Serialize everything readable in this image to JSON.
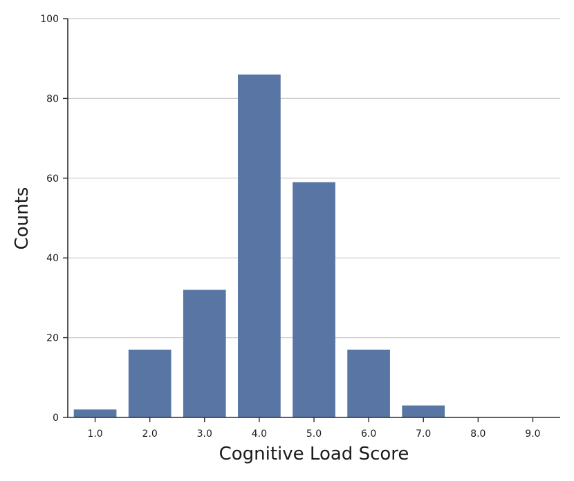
{
  "chart_data": {
    "type": "bar",
    "xlabel": "Cognitive Load Score",
    "ylabel": "Counts",
    "categories": [
      "1.0",
      "2.0",
      "3.0",
      "4.0",
      "5.0",
      "6.0",
      "7.0",
      "8.0",
      "9.0"
    ],
    "values": [
      2,
      17,
      32,
      86,
      59,
      17,
      3,
      0,
      0
    ],
    "ylim": [
      0,
      100
    ],
    "yticks": [
      "0",
      "20",
      "40",
      "60",
      "80",
      "100"
    ],
    "grid": "horizontal",
    "bar_color": "#5975a4"
  }
}
